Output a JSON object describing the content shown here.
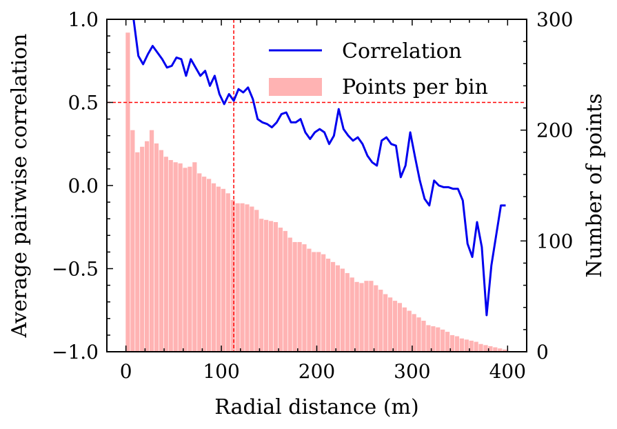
{
  "chart_data": {
    "type": "bar+line",
    "xlabel": "Radial distance (m)",
    "ylabel_left": "Average pairwise correlation",
    "ylabel_right": "Number of points",
    "xlim": [
      -20,
      420
    ],
    "ylim_left": [
      -1.0,
      1.0
    ],
    "ylim_right": [
      0,
      300
    ],
    "x_ticks": [
      0,
      100,
      200,
      300,
      400
    ],
    "x_tick_labels": [
      "0",
      "100",
      "200",
      "300",
      "400"
    ],
    "y_left_ticks": [
      -1.0,
      -0.5,
      0.0,
      0.5,
      1.0
    ],
    "y_left_tick_labels": [
      "−1.0",
      "−0.5",
      "0.0",
      "0.5",
      "1.0"
    ],
    "y_right_ticks": [
      0,
      100,
      200,
      300
    ],
    "y_right_tick_labels": [
      "0",
      "100",
      "200",
      "300"
    ],
    "grid": false,
    "legend_position": "top-right",
    "legend": [
      {
        "label": "Correlation",
        "kind": "line",
        "color": "#0000ee"
      },
      {
        "label": "Points per bin",
        "kind": "patch",
        "color": "#ffb3b3"
      }
    ],
    "reference_lines": [
      {
        "axis": "y",
        "value": 0.5,
        "color": "#ff0000",
        "style": "dashed"
      },
      {
        "axis": "x",
        "value": 113,
        "color": "#ff0000",
        "style": "dashed"
      }
    ],
    "bars": {
      "name": "Points per bin",
      "color": "#ffb3b3",
      "bin_width": 4.5,
      "x": [
        2,
        7,
        12,
        17,
        22,
        27,
        32,
        37,
        42,
        47,
        52,
        57,
        62,
        67,
        72,
        77,
        82,
        87,
        92,
        97,
        102,
        107,
        112,
        117,
        122,
        127,
        132,
        137,
        142,
        147,
        152,
        157,
        162,
        167,
        172,
        177,
        182,
        187,
        192,
        197,
        202,
        207,
        212,
        217,
        222,
        227,
        232,
        237,
        242,
        247,
        252,
        257,
        262,
        267,
        272,
        277,
        282,
        287,
        292,
        297,
        302,
        307,
        312,
        317,
        322,
        327,
        332,
        337,
        342,
        347,
        352,
        357,
        362,
        367,
        372,
        377,
        382,
        387,
        392,
        397
      ],
      "values": [
        288,
        200,
        180,
        185,
        190,
        200,
        188,
        182,
        176,
        173,
        171,
        170,
        166,
        167,
        171,
        161,
        158,
        156,
        152,
        149,
        147,
        143,
        137,
        134,
        134,
        133,
        131,
        128,
        120,
        119,
        118,
        117,
        112,
        109,
        103,
        99,
        99,
        97,
        93,
        90,
        90,
        88,
        84,
        81,
        78,
        75,
        71,
        67,
        63,
        62,
        64,
        64,
        60,
        56,
        52,
        49,
        46,
        44,
        40,
        37,
        34,
        31,
        28,
        24,
        23,
        22,
        20,
        18,
        15,
        14,
        12,
        11,
        10,
        9,
        7,
        6,
        5,
        4,
        3,
        2
      ]
    },
    "series": [
      {
        "name": "Correlation",
        "color": "#0000ee",
        "x": [
          8,
          13,
          18,
          23,
          28,
          33,
          38,
          43,
          48,
          53,
          58,
          63,
          68,
          73,
          78,
          83,
          88,
          93,
          98,
          103,
          108,
          113,
          118,
          123,
          128,
          133,
          138,
          143,
          148,
          153,
          158,
          163,
          168,
          173,
          178,
          183,
          188,
          193,
          198,
          203,
          208,
          213,
          218,
          223,
          228,
          233,
          238,
          243,
          248,
          253,
          258,
          263,
          268,
          273,
          278,
          283,
          288,
          293,
          298,
          303,
          308,
          313,
          318,
          323,
          328,
          333,
          338,
          343,
          348,
          353,
          358,
          363,
          368,
          373,
          378,
          383,
          388,
          393,
          398
        ],
        "values": [
          1.0,
          0.78,
          0.73,
          0.79,
          0.84,
          0.8,
          0.76,
          0.71,
          0.72,
          0.77,
          0.76,
          0.66,
          0.76,
          0.71,
          0.66,
          0.69,
          0.6,
          0.66,
          0.55,
          0.49,
          0.55,
          0.51,
          0.58,
          0.56,
          0.59,
          0.52,
          0.4,
          0.38,
          0.37,
          0.35,
          0.38,
          0.43,
          0.44,
          0.38,
          0.38,
          0.4,
          0.32,
          0.28,
          0.32,
          0.34,
          0.32,
          0.25,
          0.3,
          0.46,
          0.34,
          0.3,
          0.27,
          0.29,
          0.25,
          0.18,
          0.14,
          0.12,
          0.27,
          0.29,
          0.25,
          0.24,
          0.05,
          0.12,
          0.32,
          0.17,
          0.03,
          -0.08,
          -0.12,
          0.03,
          0.0,
          -0.01,
          -0.01,
          -0.02,
          -0.02,
          -0.09,
          -0.35,
          -0.43,
          -0.22,
          -0.37,
          -0.78,
          -0.48,
          -0.3,
          -0.12,
          -0.12
        ]
      }
    ]
  }
}
